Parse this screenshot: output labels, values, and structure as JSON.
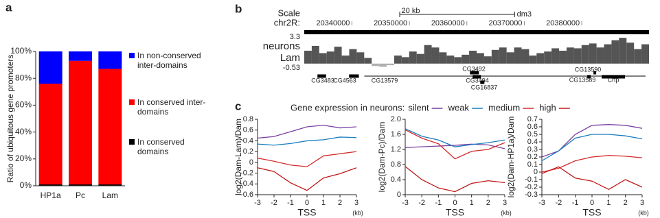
{
  "panel_labels": [
    "a",
    "b",
    "c"
  ],
  "chart_data": [
    {
      "type": "bar",
      "stacked": true,
      "ylabel": "Ratio of ubiquitous gene promoters",
      "categories": [
        "HP1a",
        "Pc",
        "Lam"
      ],
      "series": [
        {
          "name": "In conserved domains",
          "color": "#000000",
          "values": [
            1,
            1,
            1
          ]
        },
        {
          "name": "In conserved inter-domains",
          "color": "#ff0000",
          "values": [
            75,
            92,
            86
          ]
        },
        {
          "name": "In non-conserved inter-domains",
          "color": "#0000ff",
          "values": [
            24,
            7,
            13
          ]
        }
      ],
      "ylim": [
        0,
        100
      ],
      "yticks": [
        {
          "value": 0,
          "label": "0%"
        },
        {
          "value": 20,
          "label": "20%"
        },
        {
          "value": 40,
          "label": "40%"
        },
        {
          "value": 60,
          "label": "60%"
        },
        {
          "value": 80,
          "label": "80%"
        },
        {
          "value": 100,
          "label": "100%"
        }
      ]
    },
    {
      "type": "genome-track",
      "scale_label": "Scale",
      "scale_bar": {
        "value": 20000,
        "label": "20 kb"
      },
      "assembly": "dm3",
      "chrom": "chr2R:",
      "track_name": "neurons",
      "track_sample": "Lam",
      "color": "#555555",
      "negative_color": "#b0b0b0",
      "xlim": [
        20331700,
        20391700
      ],
      "xticks": [
        20340000,
        20350000,
        20360000,
        20370000,
        20380000
      ],
      "ylim": [
        -0.53,
        3.3
      ],
      "yticks": [
        3.3,
        -0.53
      ],
      "values": [
        1.6,
        2.2,
        1.3,
        1.5,
        2.1,
        1.0,
        1.8,
        1.4,
        0.7,
        -0.3,
        -0.4,
        -0.2,
        1.0,
        0.8,
        1.5,
        1.2,
        2.3,
        2.0,
        1.4,
        1.0,
        0.8,
        1.1,
        1.6,
        1.3,
        0.9,
        1.7,
        2.0,
        1.4,
        2.0,
        1.8,
        1.0,
        1.3,
        1.5,
        1.9,
        1.6,
        2.0,
        1.9,
        2.3,
        2.5,
        2.0,
        2.4,
        2.9,
        3.2,
        2.6,
        1.8,
        2.4
      ],
      "genes": [
        {
          "name": "CG3483",
          "start": 20334000,
          "end": 20335500
        },
        {
          "name": "CG4563",
          "start": 20339500,
          "end": 20341200
        },
        {
          "name": "CG13579",
          "start": 20342150,
          "end": 20391100
        },
        {
          "name": "CG3492",
          "start": 20360540,
          "end": 20362090
        },
        {
          "name": "CG3494",
          "start": 20361000,
          "end": 20362450
        },
        {
          "name": "CG16837",
          "start": 20362330,
          "end": 20363050
        },
        {
          "name": "CG13590",
          "start": 20382030,
          "end": 20382510
        },
        {
          "name": "CG13589",
          "start": 20380950,
          "end": 20381550
        },
        {
          "name": "Crtp",
          "start": 20383460,
          "end": 20387520
        }
      ]
    },
    {
      "type": "line",
      "title": "Gene expression in neurons:",
      "ylabel": "log2(Dam-Lam)/Dam",
      "xlabel": "TSS",
      "xunit": "(kb)",
      "x": [
        -3,
        -2,
        -1,
        0,
        1,
        2,
        3
      ],
      "xlim": [
        -3,
        3
      ],
      "xticks": [
        -3,
        -2,
        -1,
        0,
        1,
        2,
        3
      ],
      "ylim": [
        -0.6,
        0.8
      ],
      "yticks": [
        -0.6,
        -0.4,
        -0.2,
        0,
        0.2,
        0.4,
        0.6,
        0.8
      ],
      "series": [
        {
          "name": "silent",
          "color": "#7b3fa0",
          "values": [
            0.45,
            0.48,
            0.57,
            0.66,
            0.69,
            0.64,
            0.66
          ]
        },
        {
          "name": "weak",
          "color": "#1a7dbf",
          "values": [
            0.34,
            0.32,
            0.35,
            0.4,
            0.42,
            0.47,
            0.46
          ]
        },
        {
          "name": "medium",
          "color": "#d42a2a",
          "values": [
            0.08,
            0.02,
            -0.05,
            -0.08,
            0.12,
            0.16,
            0.2
          ]
        },
        {
          "name": "high",
          "color": "#c01818",
          "values": [
            -0.1,
            -0.17,
            -0.38,
            -0.52,
            -0.29,
            -0.21,
            -0.1
          ]
        }
      ]
    },
    {
      "type": "line",
      "ylabel": "log2(Dam-Pc)/Dam",
      "xlabel": "TSS",
      "xunit": "(kb)",
      "x": [
        -3,
        -2,
        -1,
        0,
        1,
        2,
        3
      ],
      "xlim": [
        -3,
        3
      ],
      "xticks": [
        -3,
        -2,
        -1,
        0,
        1,
        2,
        3
      ],
      "ylim": [
        0,
        2
      ],
      "yticks": [
        0,
        0.4,
        0.8,
        1.2,
        1.6,
        {
          "value": 2,
          "label": "2.0"
        }
      ],
      "series": [
        {
          "color": "#7b3fa0",
          "values": [
            1.25,
            1.27,
            1.29,
            1.31,
            1.34,
            1.32,
            1.22
          ]
        },
        {
          "color": "#1a7dbf",
          "values": [
            1.75,
            1.55,
            1.45,
            1.27,
            1.33,
            1.38,
            1.45
          ]
        },
        {
          "color": "#d42a2a",
          "values": [
            1.72,
            1.5,
            1.35,
            0.95,
            1.15,
            1.2,
            1.38
          ]
        },
        {
          "color": "#c01818",
          "values": [
            0.75,
            0.4,
            0.18,
            0.08,
            0.3,
            0.37,
            0.32
          ]
        }
      ]
    },
    {
      "type": "line",
      "ylabel": "log2(Dam-HP1a)/Dam",
      "xlabel": "TSS",
      "xunit": "(kb)",
      "x": [
        -3,
        -2,
        -1,
        0,
        1,
        2,
        3
      ],
      "xlim": [
        -3,
        3
      ],
      "xticks": [
        -3,
        -2,
        -1,
        0,
        1,
        2,
        3
      ],
      "ylim": [
        -0.3,
        0.7
      ],
      "yticks": [
        -0.3,
        -0.2,
        -0.1,
        0,
        0.1,
        0.2,
        0.3,
        0.4,
        0.5,
        0.6,
        0.7
      ],
      "series": [
        {
          "color": "#7b3fa0",
          "values": [
            0.2,
            0.28,
            0.5,
            0.62,
            0.63,
            0.62,
            0.58
          ]
        },
        {
          "color": "#1a7dbf",
          "values": [
            0.15,
            0.28,
            0.45,
            0.5,
            0.5,
            0.48,
            0.44
          ]
        },
        {
          "color": "#d42a2a",
          "values": [
            0,
            0.05,
            0.15,
            0.2,
            0.22,
            0.21,
            0.19
          ]
        },
        {
          "color": "#c01818",
          "values": [
            -0.02,
            0.07,
            -0.08,
            -0.12,
            -0.23,
            -0.1,
            -0.2
          ]
        }
      ]
    }
  ]
}
